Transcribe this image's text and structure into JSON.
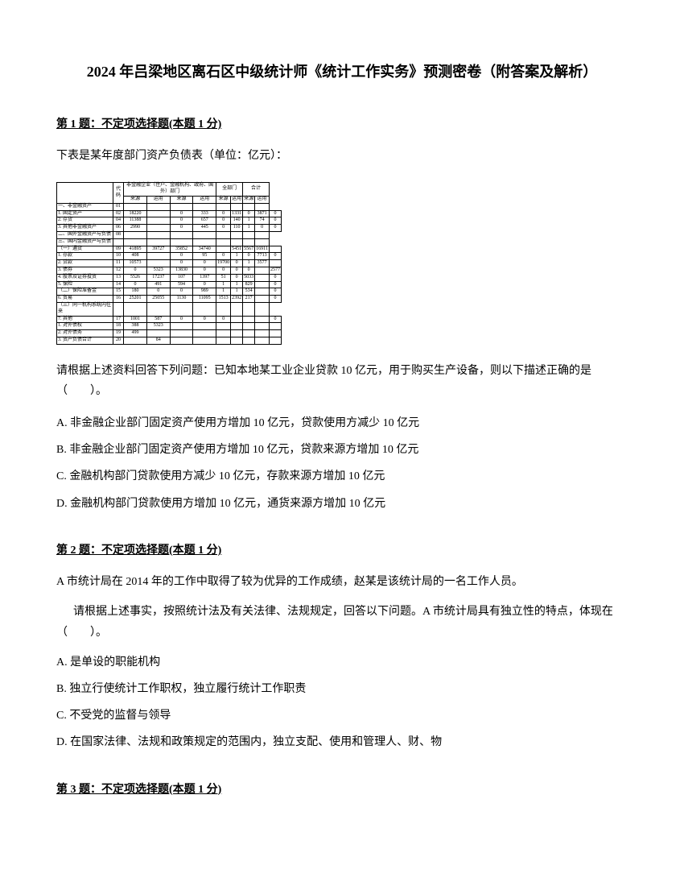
{
  "title": "2024 年吕梁地区离石区中级统计师《统计工作实务》预测密卷（附答案及解析）",
  "q1": {
    "header": "第 1 题：不定项选择题(本题 1 分)",
    "intro": "下表是某年度部门资产负债表（单位：亿元）：",
    "question": "请根据上述资料回答下列问题：已知本地某工业企业贷款 10 亿元，用于购买生产设备，则以下描述正确的是（　　）。",
    "optA": "A. 非金融企业部门固定资产使用方增加 10 亿元，贷款使用方减少 10 亿元",
    "optB": "B. 非金融企业部门固定资产使用方增加 10 亿元，贷款来源方增加 10 亿元",
    "optC": "C. 金融机构部门贷款使用方减少 10 亿元，存款来源方增加 10 亿元",
    "optD": "D. 金融机构部门贷款使用方增加 10 亿元，通货来源方增加 10 亿元"
  },
  "q2": {
    "header": "第 2 题：不定项选择题(本题 1 分)",
    "intro": "A 市统计局在 2014 年的工作中取得了较为优异的工作成绩，赵某是该统计局的一名工作人员。",
    "sub": "请根据上述事实，按照统计法及有关法律、法规规定，回答以下问题。A 市统计局具有独立性的特点，体现在（　　）。",
    "optA": "A. 是单设的职能机构",
    "optB": "B. 独立行使统计工作职权，独立履行统计工作职责",
    "optC": "C. 不受党的监督与领导",
    "optD": "D. 在国家法律、法规和政策规定的范围内，独立支配、使用和管理人、财、物"
  },
  "q3": {
    "header": "第 3 题：不定项选择题(本题 1 分)"
  },
  "table": {
    "header_row1": [
      "非金融企业（住户、金融机构、政府、国外）部门",
      "全部门",
      "合计"
    ],
    "header_row2": [
      "代码",
      "来源",
      "运用",
      "来源",
      "运用",
      "来源",
      "运用",
      "来源",
      "运用"
    ],
    "rows": [
      [
        "一、非金融资产",
        "01",
        "",
        "",
        "",
        "",
        "",
        "",
        "",
        ""
      ],
      [
        "1. 固定资产",
        "02",
        "18220",
        "",
        "0",
        "333",
        "0",
        "1331",
        "0",
        "3871",
        "0"
      ],
      [
        "2. 存货",
        "04",
        "11388",
        "",
        "0",
        "657",
        "0",
        "140",
        "1",
        "74",
        "0"
      ],
      [
        "3. 其他非金融资产",
        "06",
        "2990",
        "",
        "0",
        "445",
        "0",
        "110",
        "1",
        "0",
        "0"
      ],
      [
        "二、国外金融资产与负债",
        "08",
        "",
        "",
        "",
        "",
        "",
        "",
        "",
        ""
      ],
      [
        "三、国内金融资产与负债",
        "",
        "",
        "",
        "",
        "",
        "",
        "",
        "",
        ""
      ],
      [
        "（一）通货",
        "09",
        "41895",
        "39727",
        "35852",
        "34740",
        "",
        "5451",
        "5567",
        "16911",
        ""
      ],
      [
        "1. 存款",
        "10",
        "408",
        "",
        "0",
        "95",
        "0",
        "1",
        "0",
        "7713",
        "0"
      ],
      [
        "2. 贷款",
        "11",
        "10573",
        "",
        "0",
        "0",
        "19700",
        "0",
        "1",
        "3577",
        ""
      ],
      [
        "3. 债券",
        "12",
        "0",
        "5323",
        "13830",
        "0",
        "0",
        "0",
        "0",
        "",
        "2577"
      ],
      [
        "4. 股票及证券投资",
        "13",
        "5526",
        "17237",
        "107",
        "1397",
        "51",
        "0",
        "5033",
        "",
        "0"
      ],
      [
        "5. 保险",
        "14",
        "0",
        "491",
        "594",
        "0",
        "1",
        "1",
        "829",
        "",
        "0"
      ],
      [
        "（二）保险准备金",
        "15",
        "180",
        "0",
        "0",
        "989",
        "1",
        "1",
        "534",
        "",
        "0"
      ],
      [
        "6. 贸易",
        "16",
        "25201",
        "25055",
        "1130",
        "11095",
        "1513",
        "2392",
        "217",
        "",
        "0"
      ],
      [
        "（三）同一机构系统内往来",
        "",
        "",
        "",
        "",
        "",
        "",
        "",
        "",
        ""
      ],
      [
        "7. 其他",
        "17",
        "1001",
        "587",
        "0",
        "0",
        "0",
        "",
        "",
        "",
        "0"
      ],
      [
        "1. 对外债权",
        "18",
        "388",
        "5323",
        "",
        "",
        "",
        "",
        "",
        "",
        ""
      ],
      [
        "2. 对外债务",
        "19",
        "499",
        "",
        "",
        "",
        "",
        "",
        "",
        "",
        ""
      ],
      [
        "3. 资产负债合计",
        "20",
        "",
        "84",
        "",
        "",
        "",
        "",
        "",
        "",
        ""
      ]
    ]
  }
}
